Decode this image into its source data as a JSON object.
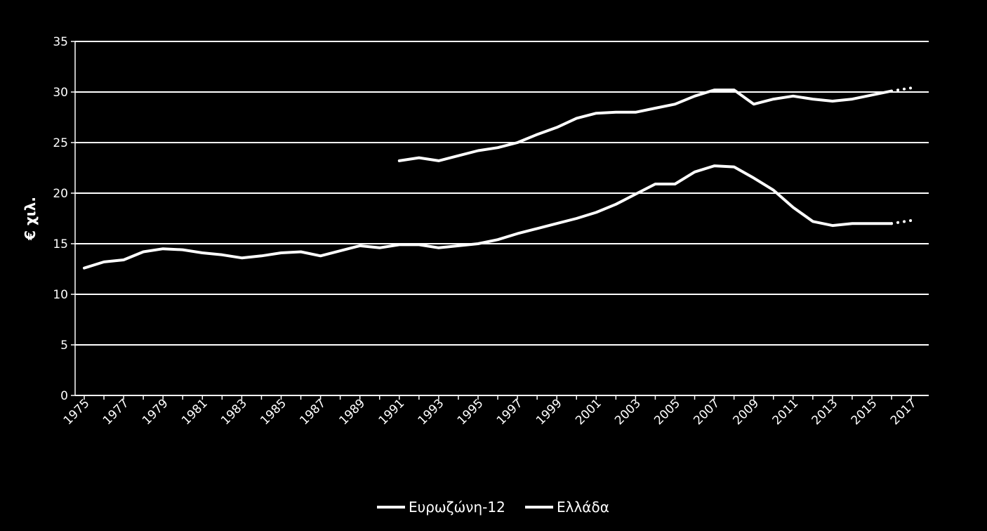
{
  "chart_data": {
    "type": "line",
    "ylabel": "€ χιλ.",
    "ylim": [
      0,
      35
    ],
    "yticks": [
      0,
      5,
      10,
      15,
      20,
      25,
      30,
      35
    ],
    "xlim": [
      1975,
      2017
    ],
    "xticks": [
      "1975",
      "1977",
      "1979",
      "1981",
      "1983",
      "1985",
      "1987",
      "1989",
      "1991",
      "1993",
      "1995",
      "1997",
      "1999",
      "2001",
      "2003",
      "2005",
      "2007",
      "2009",
      "2011",
      "2013",
      "2015",
      "2017"
    ],
    "grid": "horizontal",
    "legend": "bottom",
    "series": [
      {
        "name": "Ευρωζώνη-12",
        "color": "#ffffff",
        "x": [
          1991,
          1992,
          1993,
          1994,
          1995,
          1996,
          1997,
          1998,
          1999,
          2000,
          2001,
          2002,
          2003,
          2004,
          2005,
          2006,
          2007,
          2008,
          2009,
          2010,
          2011,
          2012,
          2013,
          2014,
          2015,
          2016
        ],
        "y": [
          23.2,
          23.5,
          23.2,
          23.7,
          24.2,
          24.5,
          25.0,
          25.8,
          26.5,
          27.4,
          27.9,
          28.0,
          28.0,
          28.4,
          28.8,
          29.6,
          30.2,
          30.2,
          28.8,
          29.3,
          29.6,
          29.3,
          29.1,
          29.3,
          29.7,
          30.1
        ],
        "projection": {
          "x": [
            2016,
            2017
          ],
          "y": [
            30.1,
            30.4
          ]
        }
      },
      {
        "name": "Ελλάδα",
        "color": "#ffffff",
        "x": [
          1975,
          1976,
          1977,
          1978,
          1979,
          1980,
          1981,
          1982,
          1983,
          1984,
          1985,
          1986,
          1987,
          1988,
          1989,
          1990,
          1991,
          1992,
          1993,
          1994,
          1995,
          1996,
          1997,
          1998,
          1999,
          2000,
          2001,
          2002,
          2003,
          2004,
          2005,
          2006,
          2007,
          2008,
          2009,
          2010,
          2011,
          2012,
          2013,
          2014,
          2015,
          2016
        ],
        "y": [
          12.6,
          13.2,
          13.4,
          14.2,
          14.5,
          14.4,
          14.1,
          13.9,
          13.6,
          13.8,
          14.1,
          14.2,
          13.8,
          14.3,
          14.8,
          14.6,
          14.9,
          14.9,
          14.6,
          14.8,
          15.0,
          15.4,
          16.0,
          16.5,
          17.0,
          17.5,
          18.1,
          18.9,
          19.9,
          20.9,
          20.9,
          22.1,
          22.7,
          22.6,
          21.5,
          20.3,
          18.6,
          17.2,
          16.8,
          17.0,
          17.0,
          17.0
        ],
        "projection": {
          "x": [
            2016,
            2017
          ],
          "y": [
            17.0,
            17.3
          ]
        }
      }
    ]
  }
}
